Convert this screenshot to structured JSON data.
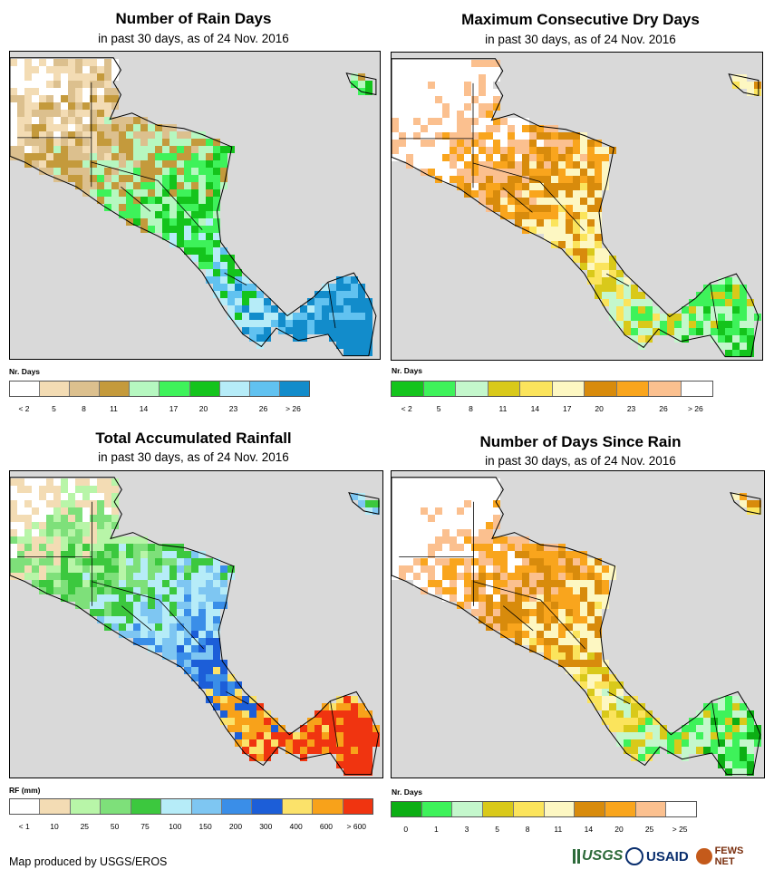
{
  "panels": [
    {
      "id": "rain_days",
      "title": "Number of Rain Days",
      "subtitle": "in past 30 days, as of 24 Nov. 2016",
      "legend_title": "Nr. Days",
      "ticks": [
        "< 2",
        "5",
        "8",
        "11",
        "14",
        "17",
        "20",
        "23",
        "26",
        "> 26"
      ],
      "colors": [
        "#ffffff",
        "#f3dcb4",
        "#dcc08e",
        "#c49a3c",
        "#b6f7c0",
        "#3ef25a",
        "#14c41c",
        "#b6ecf8",
        "#61c2f0",
        "#128ccb"
      ],
      "ocean": "#d9d9d9"
    },
    {
      "id": "dry_days",
      "title": "Maximum Consecutive Dry Days",
      "subtitle": "in past 30 days, as of 24 Nov. 2016",
      "legend_title": "Nr. Days",
      "ticks": [
        "< 2",
        "5",
        "8",
        "11",
        "14",
        "17",
        "20",
        "23",
        "26",
        "> 26"
      ],
      "colors": [
        "#14c41c",
        "#3ef25a",
        "#c4f7cc",
        "#d9c91a",
        "#fbe45c",
        "#fdf7c2",
        "#d88b0c",
        "#f9a51d",
        "#fbc08f",
        "#ffffff"
      ],
      "ocean": "#d9d9d9"
    },
    {
      "id": "rainfall",
      "title": "Total Accumulated Rainfall",
      "subtitle": "in past 30 days, as of 24 Nov. 2016",
      "legend_title": "RF (mm)",
      "ticks": [
        "< 1",
        "10",
        "25",
        "50",
        "75",
        "100",
        "150",
        "200",
        "300",
        "400",
        "600",
        "> 600"
      ],
      "colors": [
        "#ffffff",
        "#f3dcb4",
        "#b8f5a8",
        "#7ee07a",
        "#3cc83e",
        "#b6ecf8",
        "#7ec6f2",
        "#3a8ee8",
        "#1c5ed8",
        "#fbe26a",
        "#f8a21a",
        "#f03410"
      ],
      "ocean": "#d9d9d9"
    },
    {
      "id": "days_since",
      "title": "Number of Days Since Rain",
      "subtitle": "in past 30 days, as of 24 Nov. 2016",
      "legend_title": "Nr. Days",
      "ticks": [
        "0",
        "1",
        "3",
        "5",
        "8",
        "11",
        "14",
        "20",
        "25",
        "> 25"
      ],
      "colors": [
        "#0cae14",
        "#3ef25a",
        "#c4f7cc",
        "#d9c91a",
        "#fbe45c",
        "#fdf7c2",
        "#d88b0c",
        "#f9a51d",
        "#fbc08f",
        "#ffffff"
      ],
      "ocean": "#d9d9d9"
    }
  ],
  "footer": {
    "credit": "Map produced by USGS/EROS",
    "logos": [
      "USGS",
      "USAID",
      "FEWS NET"
    ]
  }
}
